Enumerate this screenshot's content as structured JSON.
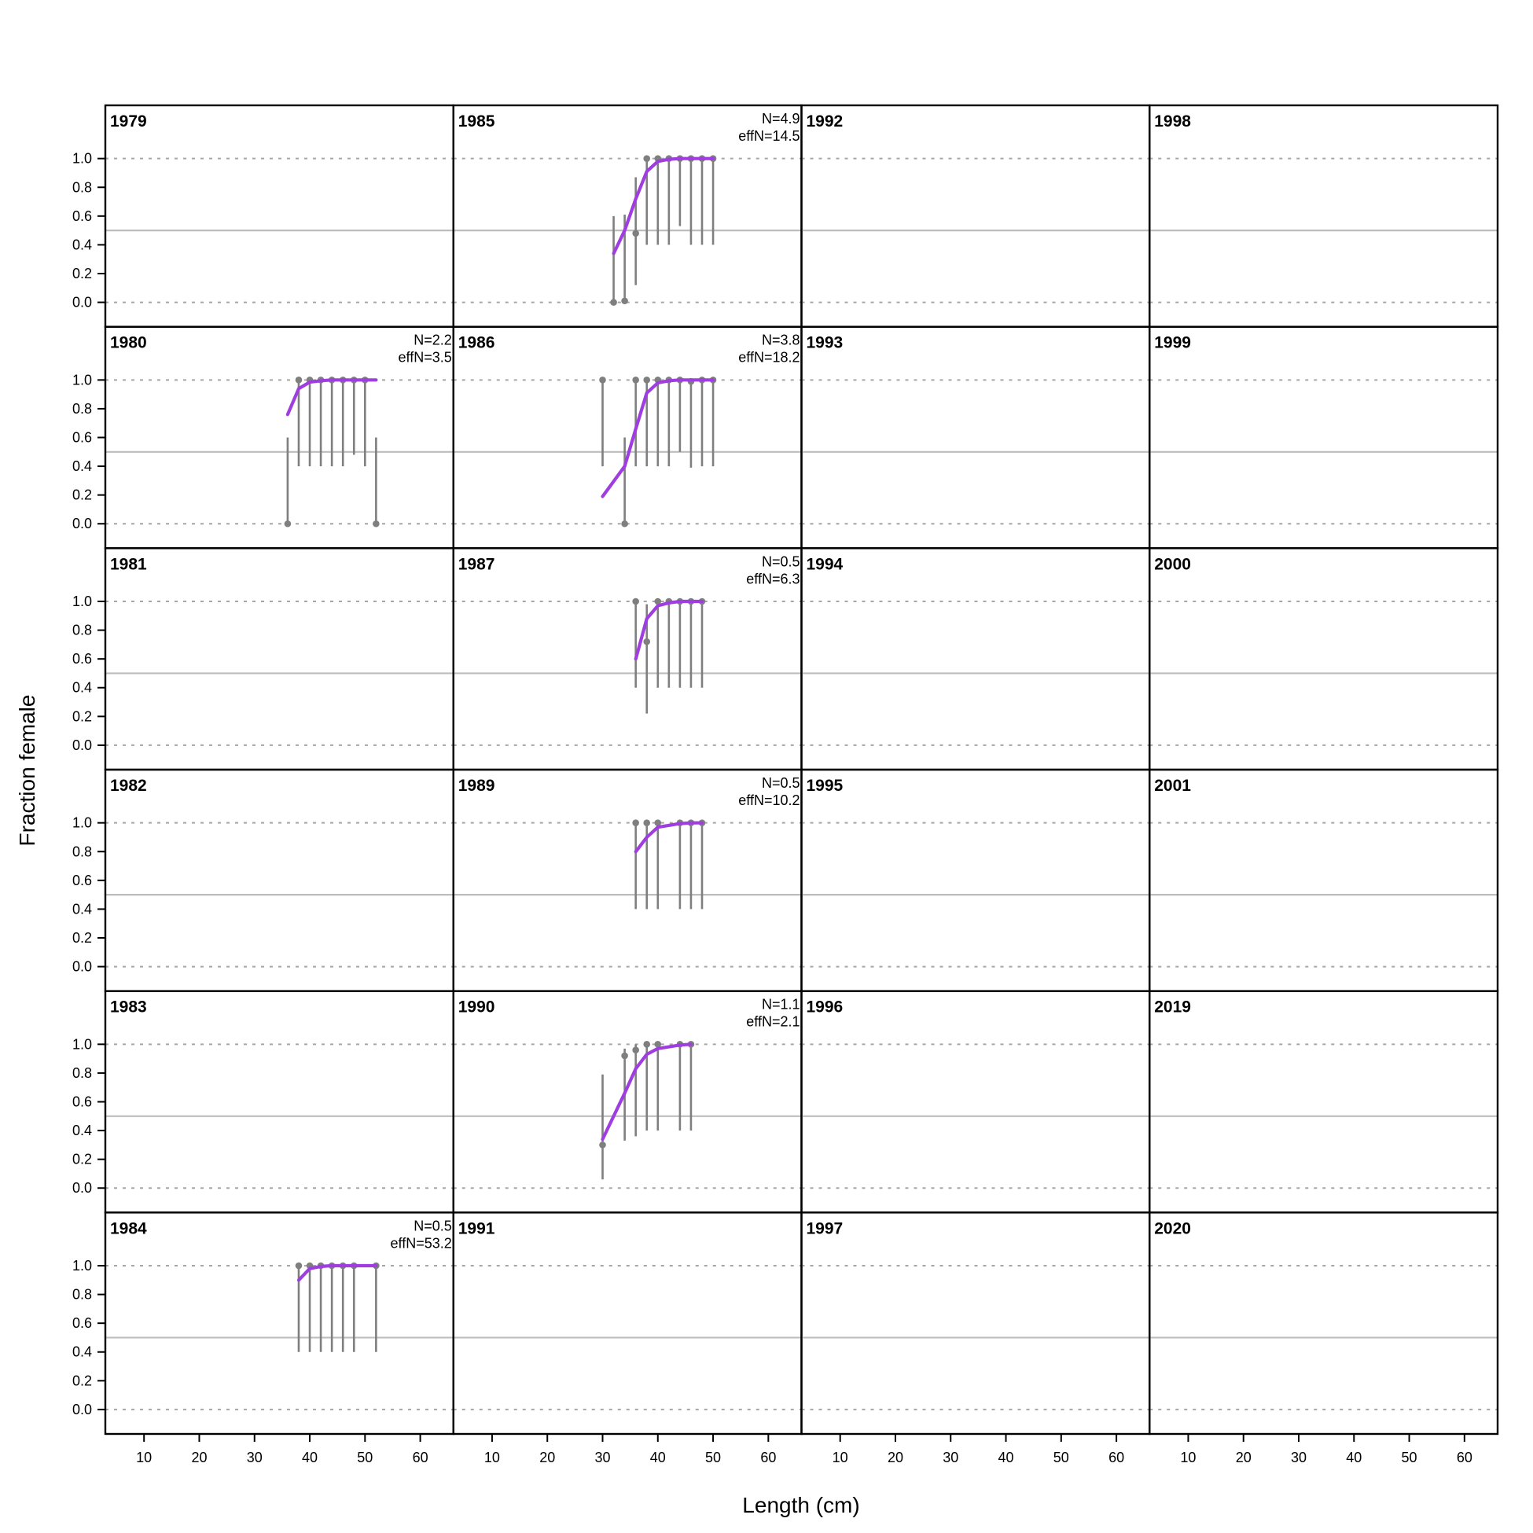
{
  "chart_data": {
    "type": "scatter",
    "xlabel": "Length (cm)",
    "ylabel": "Fraction female",
    "xlim": [
      3,
      66
    ],
    "ylim": [
      -0.17,
      1.37
    ],
    "xticks": [
      10,
      20,
      30,
      40,
      50,
      60
    ],
    "yticks": [
      0.0,
      0.2,
      0.4,
      0.6,
      0.8,
      1.0
    ],
    "ytick_labels": [
      "0.0",
      "0.2",
      "0.4",
      "0.6",
      "0.8",
      "1.0"
    ],
    "reference_lines": {
      "solid": 0.5,
      "dotted": [
        0.0,
        1.0
      ]
    },
    "layout": "6 rows x 4 columns, filled column-wise",
    "colors": {
      "observed": "#7f7f7f",
      "expected": "#a03de0",
      "solid_ref": "#bdbdbd",
      "dotted_ref": "#a6a6a6",
      "frame": "#000000"
    },
    "panels": [
      {
        "year": "1979"
      },
      {
        "year": "1980",
        "n_label": "N=2.2",
        "effn_label": "effN=3.5",
        "observed": [
          {
            "x": 36,
            "y": 0.0,
            "lo": 0.0,
            "hi": 0.6
          },
          {
            "x": 38,
            "y": 1.0,
            "lo": 0.4,
            "hi": 1.0
          },
          {
            "x": 40,
            "y": 1.0,
            "lo": 0.4,
            "hi": 1.0
          },
          {
            "x": 42,
            "y": 1.0,
            "lo": 0.4,
            "hi": 1.0
          },
          {
            "x": 44,
            "y": 1.0,
            "lo": 0.4,
            "hi": 1.0
          },
          {
            "x": 46,
            "y": 1.0,
            "lo": 0.4,
            "hi": 1.0
          },
          {
            "x": 48,
            "y": 1.0,
            "lo": 0.48,
            "hi": 1.0
          },
          {
            "x": 50,
            "y": 1.0,
            "lo": 0.4,
            "hi": 1.0
          },
          {
            "x": 52,
            "y": 0.0,
            "lo": 0.0,
            "hi": 0.6
          }
        ],
        "expected": [
          {
            "x": 36,
            "y": 0.76
          },
          {
            "x": 38,
            "y": 0.94
          },
          {
            "x": 40,
            "y": 0.985
          },
          {
            "x": 42,
            "y": 0.995
          },
          {
            "x": 44,
            "y": 1.0
          },
          {
            "x": 46,
            "y": 1.0
          },
          {
            "x": 48,
            "y": 1.0
          },
          {
            "x": 50,
            "y": 1.0
          },
          {
            "x": 52,
            "y": 1.0
          }
        ]
      },
      {
        "year": "1981"
      },
      {
        "year": "1982"
      },
      {
        "year": "1983"
      },
      {
        "year": "1984",
        "n_label": "N=0.5",
        "effn_label": "effN=53.2",
        "observed": [
          {
            "x": 38,
            "y": 1.0,
            "lo": 0.4,
            "hi": 1.0
          },
          {
            "x": 40,
            "y": 1.0,
            "lo": 0.4,
            "hi": 1.0
          },
          {
            "x": 42,
            "y": 1.0,
            "lo": 0.4,
            "hi": 1.0
          },
          {
            "x": 44,
            "y": 1.0,
            "lo": 0.4,
            "hi": 1.0
          },
          {
            "x": 46,
            "y": 1.0,
            "lo": 0.4,
            "hi": 1.0
          },
          {
            "x": 48,
            "y": 1.0,
            "lo": 0.4,
            "hi": 1.0
          },
          {
            "x": 52,
            "y": 1.0,
            "lo": 0.4,
            "hi": 1.0
          }
        ],
        "expected": [
          {
            "x": 38,
            "y": 0.9
          },
          {
            "x": 40,
            "y": 0.98
          },
          {
            "x": 42,
            "y": 0.995
          },
          {
            "x": 44,
            "y": 1.0
          },
          {
            "x": 46,
            "y": 1.0
          },
          {
            "x": 48,
            "y": 1.0
          },
          {
            "x": 52,
            "y": 1.0
          }
        ]
      },
      {
        "year": "1985",
        "n_label": "N=4.9",
        "effn_label": "effN=14.5",
        "observed": [
          {
            "x": 32,
            "y": 0.0,
            "lo": 0.0,
            "hi": 0.6
          },
          {
            "x": 34,
            "y": 0.01,
            "lo": 0.0,
            "hi": 0.61
          },
          {
            "x": 36,
            "y": 0.48,
            "lo": 0.12,
            "hi": 0.87
          },
          {
            "x": 38,
            "y": 1.0,
            "lo": 0.4,
            "hi": 1.0
          },
          {
            "x": 40,
            "y": 1.0,
            "lo": 0.4,
            "hi": 1.0
          },
          {
            "x": 42,
            "y": 1.0,
            "lo": 0.4,
            "hi": 1.0
          },
          {
            "x": 44,
            "y": 1.0,
            "lo": 0.53,
            "hi": 1.0
          },
          {
            "x": 46,
            "y": 1.0,
            "lo": 0.4,
            "hi": 1.0
          },
          {
            "x": 48,
            "y": 1.0,
            "lo": 0.4,
            "hi": 1.0
          },
          {
            "x": 50,
            "y": 1.0,
            "lo": 0.4,
            "hi": 1.0
          }
        ],
        "expected": [
          {
            "x": 32,
            "y": 0.34
          },
          {
            "x": 34,
            "y": 0.5
          },
          {
            "x": 36,
            "y": 0.72
          },
          {
            "x": 38,
            "y": 0.91
          },
          {
            "x": 40,
            "y": 0.98
          },
          {
            "x": 42,
            "y": 0.995
          },
          {
            "x": 44,
            "y": 1.0
          },
          {
            "x": 46,
            "y": 1.0
          },
          {
            "x": 48,
            "y": 1.0
          },
          {
            "x": 50,
            "y": 1.0
          }
        ]
      },
      {
        "year": "1986",
        "n_label": "N=3.8",
        "effn_label": "effN=18.2",
        "observed": [
          {
            "x": 30,
            "y": 1.0,
            "lo": 0.4,
            "hi": 1.0
          },
          {
            "x": 34,
            "y": 0.0,
            "lo": 0.0,
            "hi": 0.6
          },
          {
            "x": 36,
            "y": 1.0,
            "lo": 0.4,
            "hi": 1.0
          },
          {
            "x": 38,
            "y": 1.0,
            "lo": 0.4,
            "hi": 1.0
          },
          {
            "x": 40,
            "y": 1.0,
            "lo": 0.4,
            "hi": 1.0
          },
          {
            "x": 42,
            "y": 1.0,
            "lo": 0.4,
            "hi": 1.0
          },
          {
            "x": 44,
            "y": 1.0,
            "lo": 0.5,
            "hi": 1.0
          },
          {
            "x": 46,
            "y": 0.99,
            "lo": 0.39,
            "hi": 1.0
          },
          {
            "x": 48,
            "y": 1.0,
            "lo": 0.4,
            "hi": 1.0
          },
          {
            "x": 50,
            "y": 1.0,
            "lo": 0.4,
            "hi": 1.0
          }
        ],
        "expected": [
          {
            "x": 30,
            "y": 0.19
          },
          {
            "x": 34,
            "y": 0.4
          },
          {
            "x": 36,
            "y": 0.66
          },
          {
            "x": 38,
            "y": 0.91
          },
          {
            "x": 40,
            "y": 0.98
          },
          {
            "x": 42,
            "y": 0.995
          },
          {
            "x": 44,
            "y": 1.0
          },
          {
            "x": 46,
            "y": 1.0
          },
          {
            "x": 48,
            "y": 1.0
          },
          {
            "x": 50,
            "y": 1.0
          }
        ]
      },
      {
        "year": "1987",
        "n_label": "N=0.5",
        "effn_label": "effN=6.3",
        "observed": [
          {
            "x": 36,
            "y": 1.0,
            "lo": 0.4,
            "hi": 1.0
          },
          {
            "x": 38,
            "y": 0.72,
            "lo": 0.22,
            "hi": 0.98
          },
          {
            "x": 40,
            "y": 1.0,
            "lo": 0.4,
            "hi": 1.0
          },
          {
            "x": 42,
            "y": 1.0,
            "lo": 0.4,
            "hi": 1.0
          },
          {
            "x": 44,
            "y": 1.0,
            "lo": 0.4,
            "hi": 1.0
          },
          {
            "x": 46,
            "y": 1.0,
            "lo": 0.4,
            "hi": 1.0
          },
          {
            "x": 48,
            "y": 1.0,
            "lo": 0.4,
            "hi": 1.0
          }
        ],
        "expected": [
          {
            "x": 36,
            "y": 0.6
          },
          {
            "x": 38,
            "y": 0.88
          },
          {
            "x": 40,
            "y": 0.97
          },
          {
            "x": 42,
            "y": 0.99
          },
          {
            "x": 44,
            "y": 1.0
          },
          {
            "x": 46,
            "y": 1.0
          },
          {
            "x": 48,
            "y": 1.0
          }
        ]
      },
      {
        "year": "1989",
        "n_label": "N=0.5",
        "effn_label": "effN=10.2",
        "observed": [
          {
            "x": 36,
            "y": 1.0,
            "lo": 0.4,
            "hi": 1.0
          },
          {
            "x": 38,
            "y": 1.0,
            "lo": 0.4,
            "hi": 1.0
          },
          {
            "x": 40,
            "y": 1.0,
            "lo": 0.4,
            "hi": 1.0
          },
          {
            "x": 44,
            "y": 1.0,
            "lo": 0.4,
            "hi": 1.0
          },
          {
            "x": 46,
            "y": 1.0,
            "lo": 0.4,
            "hi": 1.0
          },
          {
            "x": 48,
            "y": 1.0,
            "lo": 0.4,
            "hi": 1.0
          }
        ],
        "expected": [
          {
            "x": 36,
            "y": 0.8
          },
          {
            "x": 38,
            "y": 0.9
          },
          {
            "x": 40,
            "y": 0.97
          },
          {
            "x": 44,
            "y": 0.995
          },
          {
            "x": 46,
            "y": 1.0
          },
          {
            "x": 48,
            "y": 1.0
          }
        ]
      },
      {
        "year": "1990",
        "n_label": "N=1.1",
        "effn_label": "effN=2.1",
        "observed": [
          {
            "x": 30,
            "y": 0.3,
            "lo": 0.06,
            "hi": 0.79
          },
          {
            "x": 34,
            "y": 0.92,
            "lo": 0.33,
            "hi": 0.97
          },
          {
            "x": 36,
            "y": 0.96,
            "lo": 0.36,
            "hi": 1.0
          },
          {
            "x": 38,
            "y": 1.0,
            "lo": 0.4,
            "hi": 1.0
          },
          {
            "x": 40,
            "y": 1.0,
            "lo": 0.4,
            "hi": 1.0
          },
          {
            "x": 44,
            "y": 1.0,
            "lo": 0.4,
            "hi": 1.0
          },
          {
            "x": 46,
            "y": 1.0,
            "lo": 0.4,
            "hi": 1.0
          }
        ],
        "expected": [
          {
            "x": 30,
            "y": 0.34
          },
          {
            "x": 34,
            "y": 0.66
          },
          {
            "x": 36,
            "y": 0.83
          },
          {
            "x": 38,
            "y": 0.93
          },
          {
            "x": 40,
            "y": 0.97
          },
          {
            "x": 44,
            "y": 0.995
          },
          {
            "x": 46,
            "y": 1.0
          }
        ]
      },
      {
        "year": "1991"
      },
      {
        "year": "1992"
      },
      {
        "year": "1993"
      },
      {
        "year": "1994"
      },
      {
        "year": "1995"
      },
      {
        "year": "1996"
      },
      {
        "year": "1997"
      },
      {
        "year": "1998"
      },
      {
        "year": "1999"
      },
      {
        "year": "2000"
      },
      {
        "year": "2001"
      },
      {
        "year": "2019"
      },
      {
        "year": "2020"
      }
    ]
  }
}
